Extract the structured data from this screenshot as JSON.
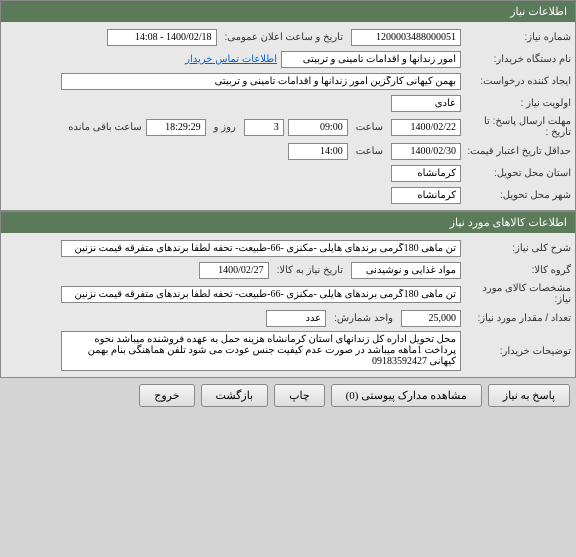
{
  "panel1": {
    "title": "اطلاعات نیاز",
    "need_number_label": "شماره نیاز:",
    "need_number": "1200003488000051",
    "public_datetime_label": "تاریخ و ساعت اعلان عمومی:",
    "public_datetime": "1400/02/18 - 14:08",
    "org_name_label": "نام دستگاه خریدار:",
    "org_name": "امور زندانها و اقدامات تامینی و تربیتی",
    "contact_link": "اطلاعات تماس خریدار",
    "creator_label": "ایجاد کننده درخواست:",
    "creator": "بهمن کیهانی کارگزین امور زندانها و اقدامات تامینی و تربیتی",
    "priority_label": "اولویت نیاز :",
    "priority": "عادی",
    "deadline_label": "مهلت ارسال پاسخ:  تا تاریخ :",
    "deadline_date": "1400/02/22",
    "time_label": "ساعت",
    "deadline_time": "09:00",
    "days_remaining": "3",
    "days_label": "روز و",
    "countdown": "18:29:29",
    "countdown_suffix": "ساعت باقی مانده",
    "min_validity_label": "حداقل تاریخ اعتبار قیمت:",
    "min_validity_date": "1400/02/30",
    "min_validity_time": "14:00",
    "province_label": "استان محل تحویل:",
    "province": "کرمانشاه",
    "city_label": "شهر محل تحویل:",
    "city": "کرمانشاه"
  },
  "panel2": {
    "title": "اطلاعات کالاهای مورد نیاز",
    "general_desc_label": "شرح کلی نیاز:",
    "general_desc": "تن ماهی 180گرمی برندهای هایلی -مکنزی -66-طبیعت- تحفه لطفا برندهای متفرقه قیمت نزنین",
    "group_label": "گروه کالا:",
    "group": "مواد غذایی و نوشیدنی",
    "delivery_date_label": "تاریخ نیاز به کالا:",
    "delivery_date": "1400/02/27",
    "spec_label": "مشخصات کالای مورد نیاز:",
    "spec": "تن ماهی 180گرمی برندهای هایلی -مکنزی -66-طبیعت- تحفه لطفا برندهای متفرقه قیمت نزنین",
    "qty_label": "تعداد / مقدار مورد نیاز:",
    "qty": "25,000",
    "unit_label": "واحد شمارش:",
    "unit": "عدد",
    "buyer_notes_label": "توضیحات خریدار:",
    "buyer_notes": "محل تحویل اداره کل زندانهای استان کرمانشاه هزینه حمل به عهده فروشنده میباشد نحوه پرداخت 1ماهه میباشد در صورت عدم کیفیت جنس عودت می شود تلفن هماهنگی بنام بهمن کیهانی 09183592427"
  },
  "buttons": {
    "reply": "پاسخ به نیاز",
    "attachments": "مشاهده مدارک پیوستی (0)",
    "print": "چاپ",
    "back": "بازگشت",
    "exit": "خروج"
  }
}
